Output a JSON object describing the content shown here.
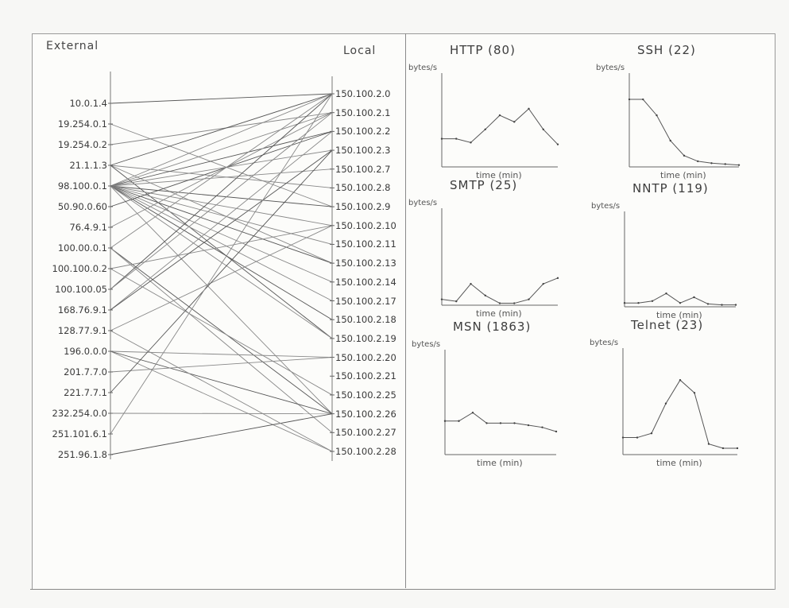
{
  "network": {
    "external_title": "External",
    "local_title": "Local",
    "external_ips": [
      "10.0.1.4",
      "19.254.0.1",
      "19.254.0.2",
      "21.1.1.3",
      "98.100.0.1",
      "50.90.0.60",
      "76.4.9.1",
      "100.00.0.1",
      "100.100.0.2",
      "100.100.05",
      "168.76.9.1",
      "128.77.9.1",
      "196.0.0.0",
      "201.7.7.0",
      "221.7.7.1",
      "232.254.0.0",
      "251.101.6.1",
      "251.96.1.8"
    ],
    "local_ips": [
      "150.100.2.0",
      "150.100.2.1",
      "150.100.2.2",
      "150.100.2.3",
      "150.100.2.7",
      "150.100.2.8",
      "150.100.2.9",
      "150.100.2.10",
      "150.100.2.11",
      "150.100.2.13",
      "150.100.2.14",
      "150.100.2.17",
      "150.100.2.18",
      "150.100.2.19",
      "150.100.2.20",
      "150.100.2.21",
      "150.100.2.25",
      "150.100.2.26",
      "150.100.2.27",
      "150.100.2.28"
    ],
    "connections": [
      [
        0,
        0
      ],
      [
        1,
        6
      ],
      [
        2,
        1
      ],
      [
        3,
        0
      ],
      [
        3,
        5
      ],
      [
        3,
        9
      ],
      [
        3,
        13
      ],
      [
        4,
        0
      ],
      [
        4,
        1
      ],
      [
        4,
        2
      ],
      [
        4,
        3
      ],
      [
        4,
        4
      ],
      [
        4,
        6
      ],
      [
        4,
        7
      ],
      [
        4,
        8
      ],
      [
        4,
        9
      ],
      [
        4,
        10
      ],
      [
        4,
        11
      ],
      [
        4,
        12
      ],
      [
        4,
        13
      ],
      [
        4,
        17
      ],
      [
        5,
        2
      ],
      [
        6,
        1
      ],
      [
        7,
        0
      ],
      [
        7,
        17
      ],
      [
        7,
        18
      ],
      [
        8,
        7
      ],
      [
        9,
        0
      ],
      [
        9,
        1
      ],
      [
        10,
        2
      ],
      [
        10,
        3
      ],
      [
        11,
        7
      ],
      [
        12,
        14
      ],
      [
        12,
        17
      ],
      [
        12,
        19
      ],
      [
        13,
        14
      ],
      [
        14,
        3
      ],
      [
        15,
        17
      ],
      [
        16,
        0
      ],
      [
        17,
        17
      ],
      [
        8,
        16
      ],
      [
        11,
        19
      ]
    ]
  },
  "charts": [
    {
      "title": "HTTP (80)",
      "ylabel": "bytes/s",
      "xlabel": "time (min)",
      "values": [
        0.3,
        0.3,
        0.26,
        0.4,
        0.55,
        0.48,
        0.62,
        0.4,
        0.24
      ]
    },
    {
      "title": "SSH (22)",
      "ylabel": "bytes/s",
      "xlabel": "time (min)",
      "values": [
        0.72,
        0.72,
        0.55,
        0.28,
        0.12,
        0.06,
        0.04,
        0.03,
        0.02
      ]
    },
    {
      "title": "SMTP (25)",
      "ylabel": "bytes/s",
      "xlabel": "time (min)",
      "values": [
        0.06,
        0.04,
        0.22,
        0.1,
        0.02,
        0.02,
        0.06,
        0.22,
        0.28
      ]
    },
    {
      "title": "NNTP (119)",
      "ylabel": "bytes/s",
      "xlabel": "time (min)",
      "values": [
        0.04,
        0.04,
        0.06,
        0.14,
        0.04,
        0.1,
        0.03,
        0.02,
        0.02
      ]
    },
    {
      "title": "MSN (1863)",
      "ylabel": "bytes/s",
      "xlabel": "time (min)",
      "values": [
        0.32,
        0.32,
        0.4,
        0.3,
        0.3,
        0.3,
        0.28,
        0.26,
        0.22
      ]
    },
    {
      "title": "Telnet (23)",
      "ylabel": "bytes/s",
      "xlabel": "time (min)",
      "values": [
        0.16,
        0.16,
        0.2,
        0.48,
        0.7,
        0.58,
        0.1,
        0.06,
        0.06
      ]
    }
  ]
}
